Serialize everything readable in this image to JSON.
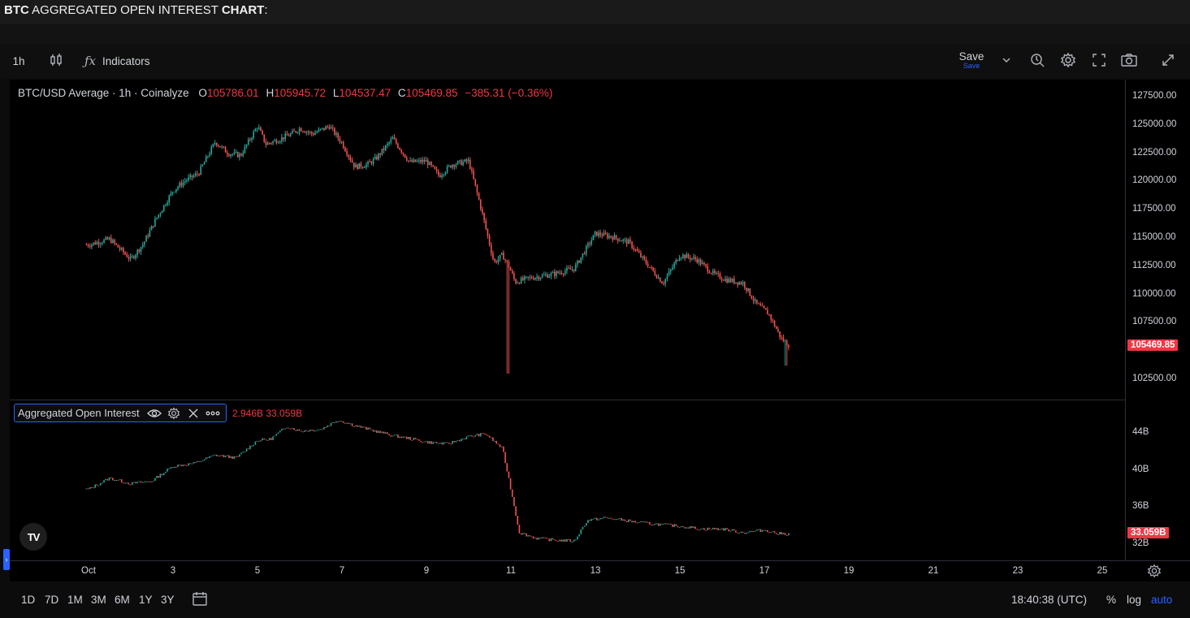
{
  "page_title": {
    "prefix": "BTC",
    "middle": " AGGREGATED OPEN INTEREST ",
    "suffix": "CHART",
    "colon": ":"
  },
  "toolbar": {
    "interval": "1h",
    "indicators_label": "Indicators",
    "save_label": "Save",
    "save_sublabel": "Save"
  },
  "legend": {
    "symbol": "BTC/USD Average · 1h · Coinalyze",
    "o_label": "O",
    "o_value": "105786.01",
    "h_label": "H",
    "h_value": "105945.72",
    "l_label": "L",
    "l_value": "104537.47",
    "c_label": "C",
    "c_value": "105469.85",
    "change": "−385.31 (−0.36%)"
  },
  "oi_legend": {
    "title": "Aggregated Open Interest",
    "values": "2.946B  33.059B"
  },
  "price_axis": {
    "labels": [
      "127500.00",
      "125000.00",
      "122500.00",
      "120000.00",
      "117500.00",
      "115000.00",
      "112500.00",
      "110000.00",
      "107500.00",
      "102500.00"
    ],
    "last_price": "105469.85"
  },
  "oi_axis": {
    "labels": [
      "44B",
      "40B",
      "36B",
      "32B"
    ],
    "last_value": "33.059B"
  },
  "time_axis": {
    "labels": [
      "Oct",
      "3",
      "5",
      "7",
      "9",
      "11",
      "13",
      "15",
      "17",
      "19",
      "21",
      "23",
      "25"
    ]
  },
  "bottom_bar": {
    "ranges": [
      "1D",
      "7D",
      "1M",
      "3M",
      "6M",
      "1Y",
      "3Y"
    ],
    "clock": "18:40:38 (UTC)",
    "percent": "%",
    "log": "log",
    "auto": "auto"
  },
  "colors": {
    "up": "#26a69a",
    "down": "#ef5350",
    "accent": "#2962ff",
    "tag": "#f23645"
  },
  "chart_data": [
    {
      "type": "candlestick",
      "title": "BTC/USD Average · 1h · Coinalyze",
      "x_unit": "day of October",
      "x": [
        1.0,
        1.5,
        2.0,
        2.3,
        2.6,
        3.0,
        3.3,
        3.6,
        4.0,
        4.3,
        4.6,
        5.0,
        5.2,
        5.5,
        5.8,
        6.0,
        6.3,
        6.7,
        7.0,
        7.3,
        7.6,
        7.8,
        8.2,
        8.6,
        9.0,
        9.3,
        9.6,
        10.0,
        10.3,
        10.6,
        10.8,
        10.95,
        11.1,
        11.5,
        12.0,
        12.5,
        13.0,
        13.4,
        13.8,
        14.2,
        14.6,
        15.0,
        15.4,
        15.8,
        16.1,
        16.5,
        16.8,
        17.1,
        17.4,
        17.6
      ],
      "close": [
        114400,
        114900,
        113100,
        114500,
        116700,
        119200,
        120100,
        120700,
        123500,
        122500,
        122300,
        124900,
        123300,
        123700,
        124200,
        124700,
        124200,
        124900,
        123400,
        121300,
        121500,
        122000,
        123800,
        121700,
        121800,
        120500,
        121500,
        121800,
        117500,
        112800,
        113500,
        112500,
        111100,
        111500,
        111800,
        112300,
        115400,
        115100,
        114600,
        112800,
        111000,
        113500,
        113100,
        111800,
        111300,
        111000,
        109200,
        108300,
        106100,
        105469.85
      ],
      "ylim": [
        101000,
        128500
      ],
      "y_ticks": [
        102500,
        107500,
        110000,
        112500,
        115000,
        117500,
        120000,
        122500,
        125000,
        127500
      ]
    },
    {
      "type": "bar",
      "title": "Aggregated Open Interest",
      "x_unit": "day of October",
      "x": [
        1.0,
        1.5,
        2.0,
        2.5,
        3.0,
        3.5,
        4.0,
        4.5,
        5.0,
        5.3,
        5.7,
        6.0,
        6.5,
        6.9,
        7.3,
        7.7,
        8.2,
        8.6,
        9.0,
        9.5,
        10.0,
        10.4,
        10.8,
        10.95,
        11.2,
        11.6,
        12.0,
        12.5,
        12.8,
        13.2,
        13.6,
        14.0,
        14.5,
        15.0,
        15.5,
        16.0,
        16.5,
        17.0,
        17.3,
        17.6
      ],
      "values": [
        37.9,
        39.1,
        38.5,
        38.8,
        40.4,
        40.7,
        41.6,
        41.3,
        43.2,
        43.3,
        44.7,
        44.2,
        44.4,
        45.4,
        44.8,
        44.3,
        43.7,
        43.4,
        43.0,
        42.8,
        43.6,
        43.9,
        42.3,
        39.0,
        33.2,
        32.6,
        32.4,
        32.3,
        34.5,
        34.8,
        34.6,
        34.3,
        34.1,
        33.9,
        33.6,
        33.6,
        33.2,
        33.5,
        33.1,
        33.059
      ],
      "unit": "B",
      "ylim": [
        31,
        48
      ],
      "y_ticks": [
        32,
        36,
        40,
        44
      ]
    }
  ]
}
